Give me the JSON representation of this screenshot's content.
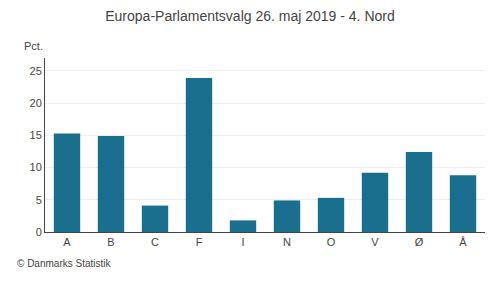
{
  "chart_data": {
    "type": "bar",
    "title": "Europa-Parlamentsvalg 26. maj 2019 - 4. Nord",
    "ylabel": "Pct.",
    "annotations": [
      "© Danmarks Statistik"
    ],
    "categories": [
      "A",
      "B",
      "C",
      "F",
      "I",
      "N",
      "O",
      "V",
      "Ø",
      "Å"
    ],
    "values": [
      15.3,
      14.9,
      4.1,
      23.9,
      1.8,
      4.9,
      5.3,
      9.2,
      12.4,
      8.8
    ],
    "color": "#1a6e8e",
    "ylim": [
      0,
      27
    ],
    "yticks": [
      0,
      5,
      10,
      15,
      20,
      25
    ],
    "grid": true
  }
}
